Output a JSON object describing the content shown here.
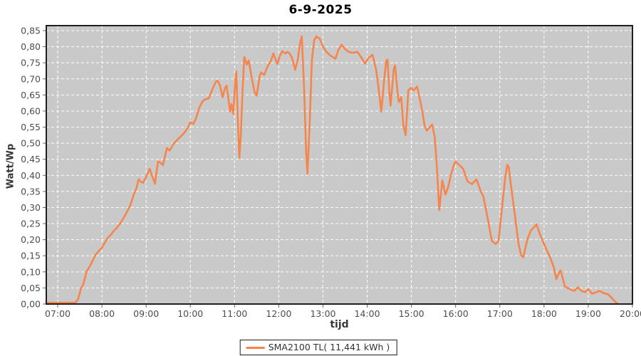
{
  "title": "6-9-2025",
  "axes": {
    "x_label": "tijd",
    "y_label": "Watt/Wp"
  },
  "legend": {
    "label": "SMA2100 TL( 11,441 kWh )"
  },
  "colors": {
    "page_bg": "#ffffff",
    "plot_bg": "#c9c9c9",
    "grid": "#ffffff",
    "border": "#1f1f1f",
    "tick": "#666666",
    "tick_label": "#4d4d4d",
    "axis_title": "#383838",
    "title": "#000000",
    "series": "#f5854d"
  },
  "chart_data": {
    "type": "line",
    "title": "6-9-2025",
    "xlabel": "tijd",
    "ylabel": "Watt/Wp",
    "legend_position": "bottom",
    "grid": "white dashed on gray plot background",
    "xlim": [
      6.742,
      20.0
    ],
    "ylim": [
      0,
      0.8655
    ],
    "x_ticks": [
      {
        "hour": 7,
        "label": "07:00"
      },
      {
        "hour": 8,
        "label": "08:00"
      },
      {
        "hour": 9,
        "label": "09:00"
      },
      {
        "hour": 10,
        "label": "10:00"
      },
      {
        "hour": 11,
        "label": "11:00"
      },
      {
        "hour": 12,
        "label": "12:00"
      },
      {
        "hour": 13,
        "label": "13:00"
      },
      {
        "hour": 14,
        "label": "14:00"
      },
      {
        "hour": 15,
        "label": "15:00"
      },
      {
        "hour": 16,
        "label": "16:00"
      },
      {
        "hour": 17,
        "label": "17:00"
      },
      {
        "hour": 18,
        "label": "18:00"
      },
      {
        "hour": 19,
        "label": "19:00"
      },
      {
        "hour": 20,
        "label": "20:00"
      }
    ],
    "y_ticks": [
      {
        "value": 0.0,
        "label": "0,00"
      },
      {
        "value": 0.05,
        "label": "0,05"
      },
      {
        "value": 0.1,
        "label": "0,10"
      },
      {
        "value": 0.15,
        "label": "0,15"
      },
      {
        "value": 0.2,
        "label": "0,20"
      },
      {
        "value": 0.25,
        "label": "0,25"
      },
      {
        "value": 0.3,
        "label": "0,30"
      },
      {
        "value": 0.35,
        "label": "0,35"
      },
      {
        "value": 0.4,
        "label": "0,40"
      },
      {
        "value": 0.45,
        "label": "0,45"
      },
      {
        "value": 0.5,
        "label": "0,50"
      },
      {
        "value": 0.55,
        "label": "0,55"
      },
      {
        "value": 0.6,
        "label": "0,60"
      },
      {
        "value": 0.65,
        "label": "0,65"
      },
      {
        "value": 0.7,
        "label": "0,70"
      },
      {
        "value": 0.75,
        "label": "0,75"
      },
      {
        "value": 0.8,
        "label": "0,80"
      },
      {
        "value": 0.85,
        "label": "0,85"
      }
    ],
    "series": [
      {
        "name": "SMA2100 TL( 11,441 kWh )",
        "color": "#f5854d",
        "points": [
          [
            6.74,
            0.004
          ],
          [
            7.0,
            0.004
          ],
          [
            7.2,
            0.004
          ],
          [
            7.4,
            0.004
          ],
          [
            7.46,
            0.015
          ],
          [
            7.5,
            0.035
          ],
          [
            7.53,
            0.05
          ],
          [
            7.57,
            0.058
          ],
          [
            7.62,
            0.082
          ],
          [
            7.65,
            0.1
          ],
          [
            7.7,
            0.112
          ],
          [
            7.73,
            0.118
          ],
          [
            7.78,
            0.132
          ],
          [
            7.85,
            0.152
          ],
          [
            7.93,
            0.165
          ],
          [
            8.0,
            0.175
          ],
          [
            8.07,
            0.192
          ],
          [
            8.13,
            0.205
          ],
          [
            8.2,
            0.215
          ],
          [
            8.27,
            0.228
          ],
          [
            8.33,
            0.236
          ],
          [
            8.42,
            0.252
          ],
          [
            8.5,
            0.27
          ],
          [
            8.58,
            0.29
          ],
          [
            8.65,
            0.31
          ],
          [
            8.72,
            0.34
          ],
          [
            8.78,
            0.36
          ],
          [
            8.83,
            0.388
          ],
          [
            8.88,
            0.38
          ],
          [
            8.93,
            0.377
          ],
          [
            9.0,
            0.395
          ],
          [
            9.08,
            0.421
          ],
          [
            9.13,
            0.4
          ],
          [
            9.2,
            0.374
          ],
          [
            9.27,
            0.443
          ],
          [
            9.32,
            0.44
          ],
          [
            9.38,
            0.432
          ],
          [
            9.47,
            0.485
          ],
          [
            9.53,
            0.477
          ],
          [
            9.63,
            0.5
          ],
          [
            9.73,
            0.514
          ],
          [
            9.85,
            0.53
          ],
          [
            9.93,
            0.545
          ],
          [
            10.0,
            0.565
          ],
          [
            10.07,
            0.56
          ],
          [
            10.13,
            0.578
          ],
          [
            10.2,
            0.61
          ],
          [
            10.28,
            0.631
          ],
          [
            10.33,
            0.636
          ],
          [
            10.42,
            0.64
          ],
          [
            10.5,
            0.668
          ],
          [
            10.58,
            0.692
          ],
          [
            10.62,
            0.694
          ],
          [
            10.67,
            0.68
          ],
          [
            10.73,
            0.643
          ],
          [
            10.78,
            0.67
          ],
          [
            10.82,
            0.679
          ],
          [
            10.87,
            0.63
          ],
          [
            10.9,
            0.598
          ],
          [
            10.93,
            0.622
          ],
          [
            10.97,
            0.591
          ],
          [
            11.02,
            0.7
          ],
          [
            11.04,
            0.723
          ],
          [
            11.08,
            0.55
          ],
          [
            11.11,
            0.455
          ],
          [
            11.14,
            0.52
          ],
          [
            11.18,
            0.66
          ],
          [
            11.22,
            0.768
          ],
          [
            11.28,
            0.744
          ],
          [
            11.32,
            0.757
          ],
          [
            11.38,
            0.71
          ],
          [
            11.45,
            0.66
          ],
          [
            11.5,
            0.648
          ],
          [
            11.57,
            0.71
          ],
          [
            11.6,
            0.72
          ],
          [
            11.67,
            0.712
          ],
          [
            11.75,
            0.74
          ],
          [
            11.82,
            0.755
          ],
          [
            11.88,
            0.779
          ],
          [
            11.93,
            0.76
          ],
          [
            11.97,
            0.746
          ],
          [
            12.02,
            0.77
          ],
          [
            12.08,
            0.786
          ],
          [
            12.15,
            0.779
          ],
          [
            12.2,
            0.784
          ],
          [
            12.25,
            0.778
          ],
          [
            12.3,
            0.765
          ],
          [
            12.37,
            0.728
          ],
          [
            12.43,
            0.76
          ],
          [
            12.48,
            0.81
          ],
          [
            12.52,
            0.832
          ],
          [
            12.57,
            0.68
          ],
          [
            12.62,
            0.47
          ],
          [
            12.65,
            0.405
          ],
          [
            12.7,
            0.56
          ],
          [
            12.75,
            0.76
          ],
          [
            12.8,
            0.82
          ],
          [
            12.85,
            0.832
          ],
          [
            12.93,
            0.824
          ],
          [
            13.0,
            0.8
          ],
          [
            13.08,
            0.784
          ],
          [
            13.17,
            0.772
          ],
          [
            13.23,
            0.768
          ],
          [
            13.28,
            0.762
          ],
          [
            13.35,
            0.79
          ],
          [
            13.42,
            0.806
          ],
          [
            13.5,
            0.793
          ],
          [
            13.58,
            0.784
          ],
          [
            13.67,
            0.781
          ],
          [
            13.78,
            0.784
          ],
          [
            13.88,
            0.764
          ],
          [
            13.95,
            0.747
          ],
          [
            14.03,
            0.765
          ],
          [
            14.12,
            0.775
          ],
          [
            14.2,
            0.73
          ],
          [
            14.25,
            0.679
          ],
          [
            14.32,
            0.598
          ],
          [
            14.38,
            0.69
          ],
          [
            14.43,
            0.755
          ],
          [
            14.46,
            0.76
          ],
          [
            14.5,
            0.66
          ],
          [
            14.53,
            0.617
          ],
          [
            14.6,
            0.73
          ],
          [
            14.63,
            0.742
          ],
          [
            14.7,
            0.64
          ],
          [
            14.72,
            0.628
          ],
          [
            14.77,
            0.643
          ],
          [
            14.82,
            0.554
          ],
          [
            14.87,
            0.525
          ],
          [
            14.93,
            0.665
          ],
          [
            15.0,
            0.672
          ],
          [
            15.05,
            0.664
          ],
          [
            15.13,
            0.676
          ],
          [
            15.25,
            0.598
          ],
          [
            15.3,
            0.554
          ],
          [
            15.35,
            0.539
          ],
          [
            15.43,
            0.552
          ],
          [
            15.47,
            0.558
          ],
          [
            15.53,
            0.517
          ],
          [
            15.58,
            0.42
          ],
          [
            15.63,
            0.292
          ],
          [
            15.7,
            0.384
          ],
          [
            15.77,
            0.34
          ],
          [
            15.83,
            0.362
          ],
          [
            15.9,
            0.405
          ],
          [
            15.97,
            0.436
          ],
          [
            16.0,
            0.443
          ],
          [
            16.08,
            0.432
          ],
          [
            16.17,
            0.421
          ],
          [
            16.27,
            0.381
          ],
          [
            16.37,
            0.373
          ],
          [
            16.47,
            0.388
          ],
          [
            16.57,
            0.35
          ],
          [
            16.63,
            0.333
          ],
          [
            16.72,
            0.27
          ],
          [
            16.82,
            0.196
          ],
          [
            16.9,
            0.187
          ],
          [
            16.97,
            0.195
          ],
          [
            17.05,
            0.3
          ],
          [
            17.12,
            0.39
          ],
          [
            17.17,
            0.433
          ],
          [
            17.2,
            0.426
          ],
          [
            17.27,
            0.35
          ],
          [
            17.33,
            0.288
          ],
          [
            17.42,
            0.19
          ],
          [
            17.48,
            0.152
          ],
          [
            17.53,
            0.145
          ],
          [
            17.62,
            0.2
          ],
          [
            17.7,
            0.228
          ],
          [
            17.78,
            0.24
          ],
          [
            17.83,
            0.248
          ],
          [
            17.9,
            0.22
          ],
          [
            17.98,
            0.193
          ],
          [
            18.07,
            0.165
          ],
          [
            18.13,
            0.148
          ],
          [
            18.22,
            0.115
          ],
          [
            18.28,
            0.078
          ],
          [
            18.35,
            0.1
          ],
          [
            18.38,
            0.104
          ],
          [
            18.47,
            0.055
          ],
          [
            18.53,
            0.05
          ],
          [
            18.62,
            0.044
          ],
          [
            18.68,
            0.041
          ],
          [
            18.77,
            0.052
          ],
          [
            18.85,
            0.04
          ],
          [
            18.93,
            0.037
          ],
          [
            19.0,
            0.046
          ],
          [
            19.08,
            0.032
          ],
          [
            19.17,
            0.036
          ],
          [
            19.25,
            0.041
          ],
          [
            19.35,
            0.034
          ],
          [
            19.45,
            0.03
          ],
          [
            19.53,
            0.019
          ],
          [
            19.6,
            0.008
          ],
          [
            19.67,
            0.001
          ]
        ]
      }
    ]
  }
}
